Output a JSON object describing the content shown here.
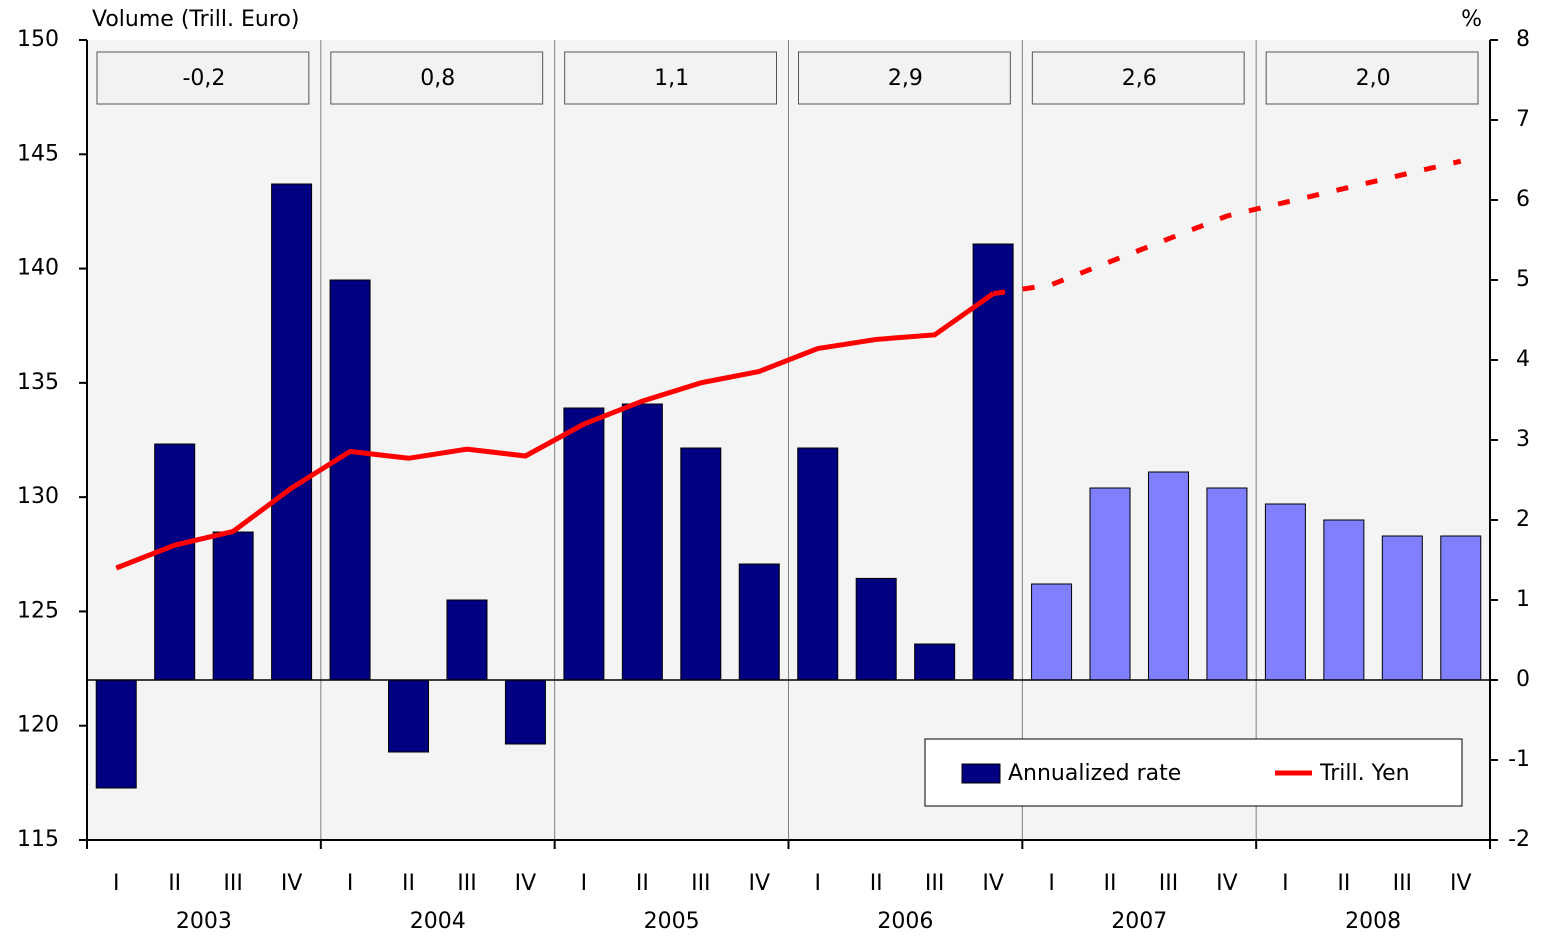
{
  "chart_data": {
    "type": "bar-line",
    "y_label": "Volume (Trill. Euro)",
    "y2_label": "%",
    "categories": [
      "I",
      "II",
      "III",
      "IV",
      "I",
      "II",
      "III",
      "IV",
      "I",
      "II",
      "III",
      "IV",
      "I",
      "II",
      "III",
      "IV",
      "I",
      "II",
      "III",
      "IV",
      "I",
      "II",
      "III",
      "IV"
    ],
    "groups": [
      "2003",
      "2004",
      "2005",
      "2006",
      "2007",
      "2008"
    ],
    "group_annotations": [
      "-0,2",
      "0,8",
      "1,1",
      "2,9",
      "2,6",
      "2,0"
    ],
    "ylim": [
      115,
      150
    ],
    "yticks": [
      115,
      120,
      125,
      130,
      135,
      140,
      145,
      150
    ],
    "y2lim": [
      -2,
      8
    ],
    "y2ticks": [
      -2,
      -1,
      0,
      1,
      2,
      3,
      4,
      5,
      6,
      7,
      8
    ],
    "series": [
      {
        "name": "Annualized rate",
        "type": "bar",
        "axis": "y2",
        "color": "#000080",
        "colors": [
          "#000080",
          "#000080",
          "#000080",
          "#000080",
          "#000080",
          "#000080",
          "#000080",
          "#000080",
          "#000080",
          "#000080",
          "#000080",
          "#000080",
          "#000080",
          "#000080",
          "#000080",
          "#000080",
          "#8080ff",
          "#8080ff",
          "#8080ff",
          "#8080ff",
          "#8080ff",
          "#8080ff",
          "#8080ff",
          "#8080ff"
        ],
        "values": [
          -1.35,
          2.95,
          1.85,
          6.2,
          5.0,
          -0.9,
          1.0,
          -0.8,
          3.4,
          3.45,
          2.9,
          1.45,
          2.9,
          1.27,
          0.45,
          5.45,
          1.2,
          2.4,
          2.6,
          2.4,
          2.2,
          2.0,
          1.8,
          1.8
        ]
      },
      {
        "name": "Trill. Yen",
        "type": "line",
        "color": "#ff0000",
        "dash_from": 15,
        "values": [
          126.9,
          127.9,
          128.5,
          130.4,
          132.0,
          131.7,
          132.1,
          131.8,
          133.2,
          134.2,
          135.0,
          135.5,
          136.5,
          136.9,
          137.1,
          138.9,
          139.3,
          140.3,
          141.3,
          142.3,
          142.9,
          143.5,
          144.1,
          144.7
        ]
      }
    ]
  }
}
